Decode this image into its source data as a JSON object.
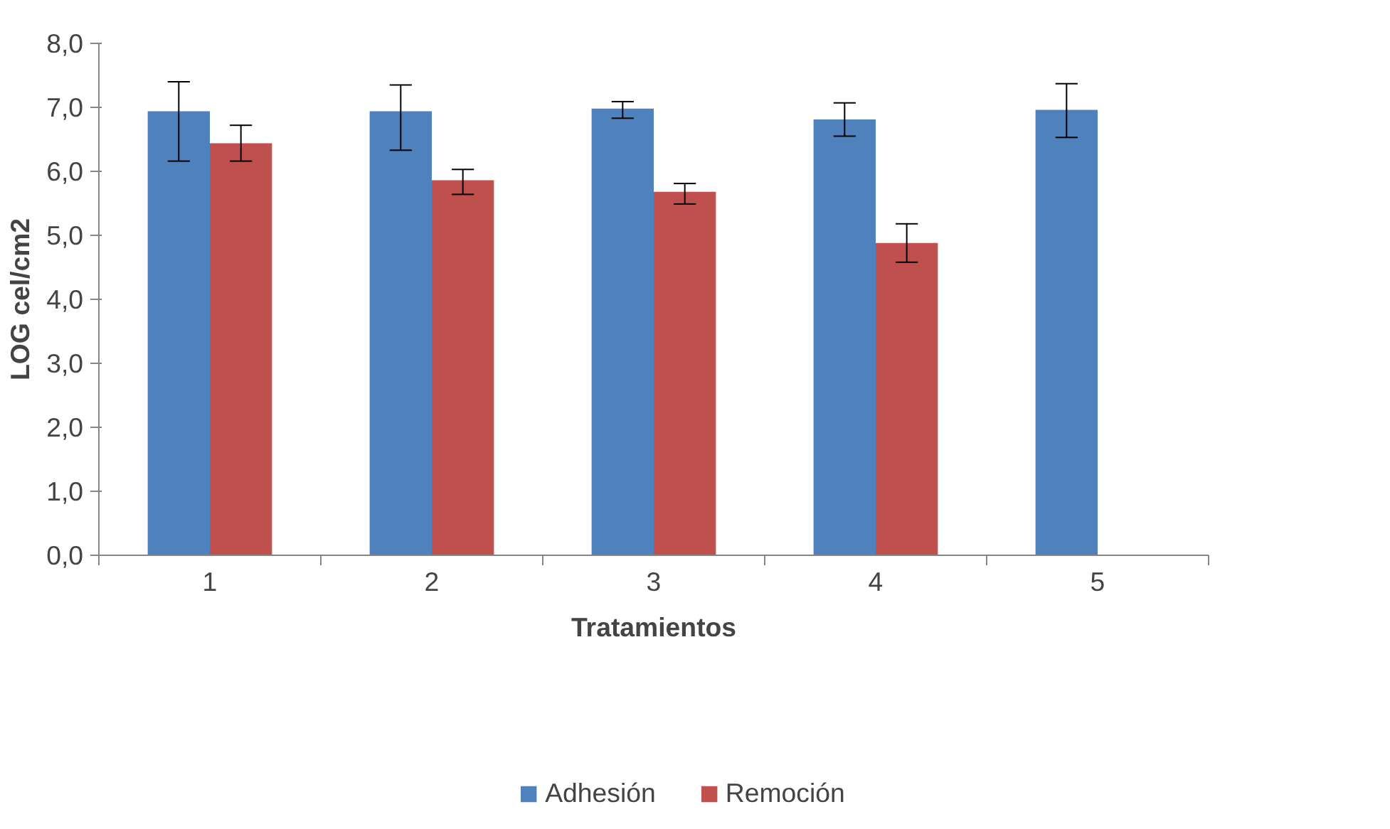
{
  "chart_data": {
    "type": "bar",
    "xlabel": "Tratamientos",
    "ylabel": "LOG cel/cm2",
    "categories": [
      "1",
      "2",
      "3",
      "4",
      "5"
    ],
    "series": [
      {
        "name": "Adhesión",
        "color": "#4f81bd",
        "values": [
          6.94,
          6.94,
          6.98,
          6.81,
          6.96
        ],
        "errors": [
          [
            6.16,
            7.4
          ],
          [
            6.33,
            7.35
          ],
          [
            6.83,
            7.09
          ],
          [
            6.55,
            7.07
          ],
          [
            6.53,
            7.37
          ]
        ]
      },
      {
        "name": "Remoción",
        "color": "#c0504d",
        "values": [
          6.44,
          5.86,
          5.68,
          4.88,
          null
        ],
        "errors": [
          [
            6.16,
            6.72
          ],
          [
            5.64,
            6.03
          ],
          [
            5.49,
            5.81
          ],
          [
            4.58,
            5.18
          ],
          null
        ]
      }
    ],
    "ylim": [
      0,
      8
    ],
    "yticks": [
      {
        "value": 0,
        "label": "0,0"
      },
      {
        "value": 1,
        "label": "1,0"
      },
      {
        "value": 2,
        "label": "2,0"
      },
      {
        "value": 3,
        "label": "3,0"
      },
      {
        "value": 4,
        "label": "4,0"
      },
      {
        "value": 5,
        "label": "5,0"
      },
      {
        "value": 6,
        "label": "6,0"
      },
      {
        "value": 7,
        "label": "7,0"
      },
      {
        "value": 8,
        "label": "8,0"
      }
    ],
    "grid": false,
    "legend": "bottom"
  }
}
